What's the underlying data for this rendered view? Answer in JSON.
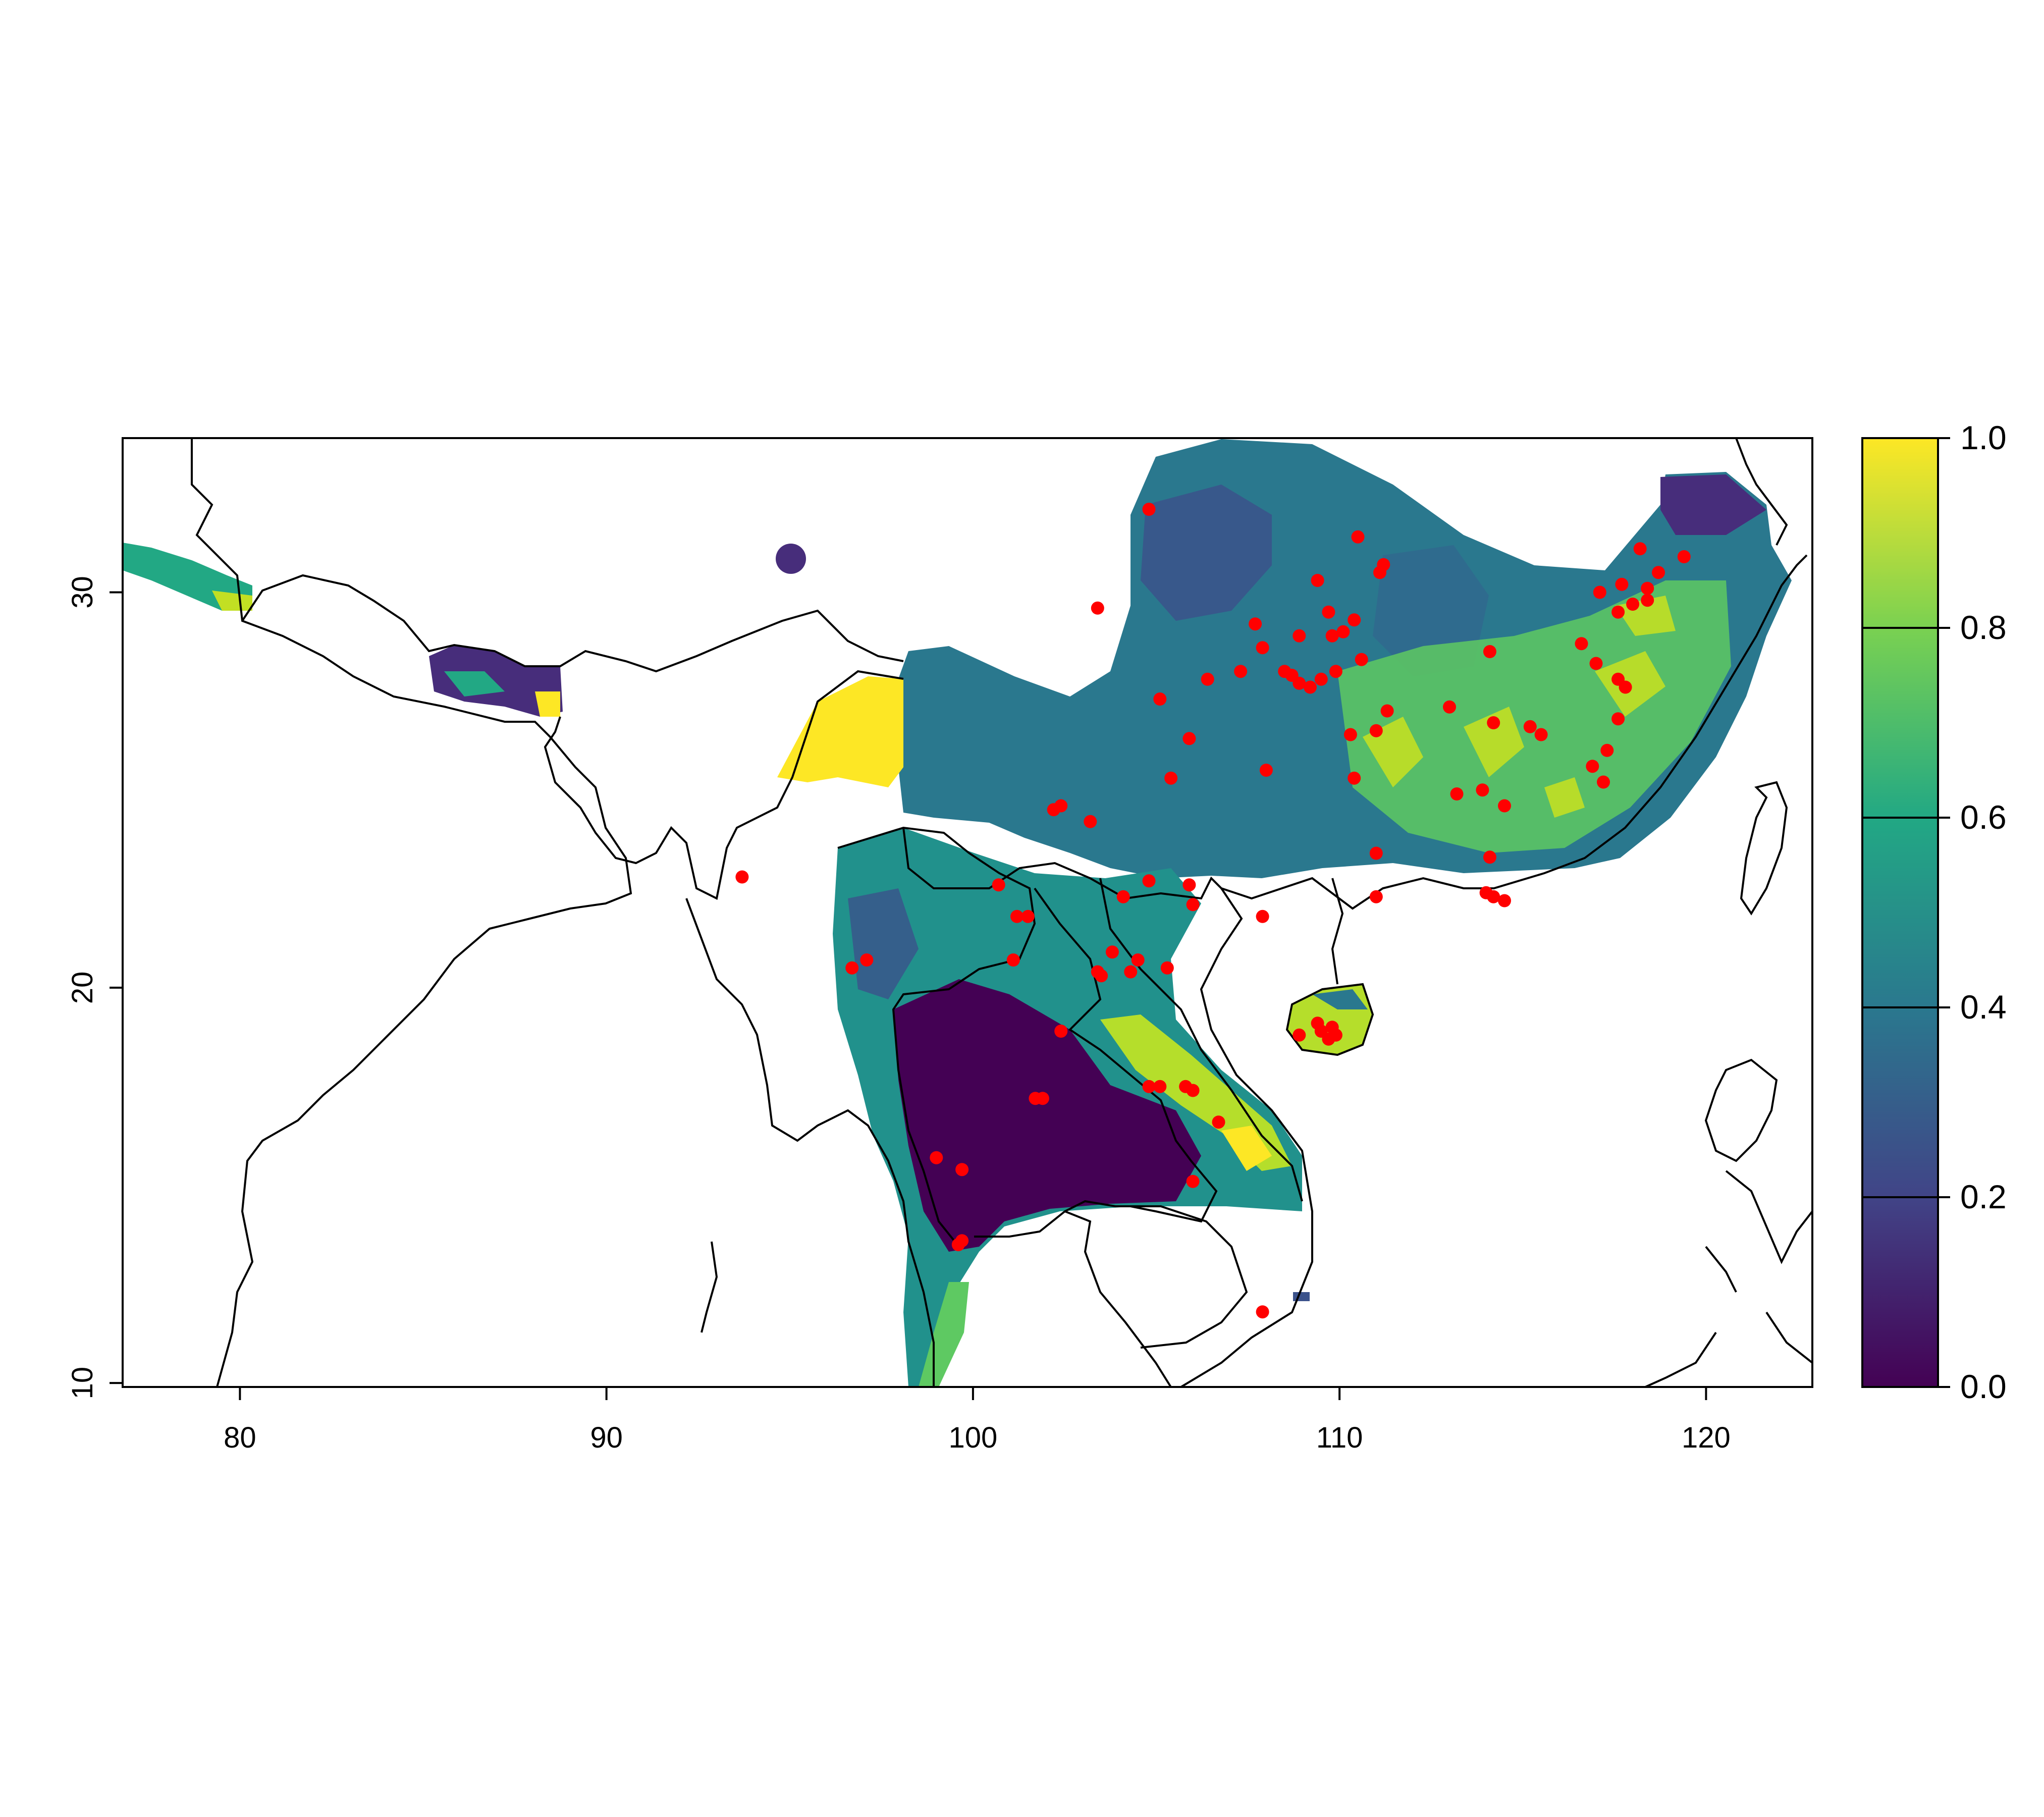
{
  "chart_data": {
    "type": "raster-map",
    "x_ticks": [
      "80",
      "90",
      "100",
      "110",
      "120"
    ],
    "y_ticks": [
      "10",
      "20",
      "30"
    ],
    "xlim": [
      76.8,
      122.9
    ],
    "ylim": [
      9.9,
      33.9
    ],
    "colorbar": {
      "ticks": [
        "0.0",
        "0.2",
        "0.4",
        "0.6",
        "0.8",
        "1.0"
      ],
      "range": [
        0,
        1
      ],
      "palette": [
        "#440154",
        "#414487",
        "#2a788e",
        "#22a884",
        "#7ad151",
        "#fde725"
      ]
    },
    "point_color": "#ff0000",
    "points": [
      {
        "lon": 104.8,
        "lat": 32.1
      },
      {
        "lon": 110.5,
        "lat": 31.4
      },
      {
        "lon": 111.2,
        "lat": 30.7
      },
      {
        "lon": 111.1,
        "lat": 30.5
      },
      {
        "lon": 109.4,
        "lat": 30.3
      },
      {
        "lon": 103.4,
        "lat": 29.6
      },
      {
        "lon": 107.7,
        "lat": 29.2
      },
      {
        "lon": 109.7,
        "lat": 29.5
      },
      {
        "lon": 110.4,
        "lat": 29.3
      },
      {
        "lon": 108.9,
        "lat": 28.9
      },
      {
        "lon": 109.8,
        "lat": 28.9
      },
      {
        "lon": 110.1,
        "lat": 29.0
      },
      {
        "lon": 107.9,
        "lat": 28.6
      },
      {
        "lon": 108.5,
        "lat": 28.0
      },
      {
        "lon": 108.7,
        "lat": 27.9
      },
      {
        "lon": 108.9,
        "lat": 27.7
      },
      {
        "lon": 109.2,
        "lat": 27.6
      },
      {
        "lon": 109.5,
        "lat": 27.8
      },
      {
        "lon": 109.9,
        "lat": 28.0
      },
      {
        "lon": 110.6,
        "lat": 28.3
      },
      {
        "lon": 107.3,
        "lat": 28.0
      },
      {
        "lon": 106.4,
        "lat": 27.8
      },
      {
        "lon": 105.1,
        "lat": 27.3
      },
      {
        "lon": 111.3,
        "lat": 27.0
      },
      {
        "lon": 113.0,
        "lat": 27.1
      },
      {
        "lon": 110.3,
        "lat": 26.4
      },
      {
        "lon": 111.0,
        "lat": 26.5
      },
      {
        "lon": 105.9,
        "lat": 26.3
      },
      {
        "lon": 108.0,
        "lat": 25.5
      },
      {
        "lon": 110.4,
        "lat": 25.3
      },
      {
        "lon": 105.4,
        "lat": 25.3
      },
      {
        "lon": 113.2,
        "lat": 24.9
      },
      {
        "lon": 113.9,
        "lat": 25.0
      },
      {
        "lon": 114.5,
        "lat": 24.6
      },
      {
        "lon": 114.1,
        "lat": 28.5
      },
      {
        "lon": 114.2,
        "lat": 26.7
      },
      {
        "lon": 115.5,
        "lat": 26.4
      },
      {
        "lon": 116.9,
        "lat": 25.6
      },
      {
        "lon": 117.3,
        "lat": 26.0
      },
      {
        "lon": 117.6,
        "lat": 26.8
      },
      {
        "lon": 117.2,
        "lat": 25.2
      },
      {
        "lon": 117.0,
        "lat": 28.2
      },
      {
        "lon": 117.6,
        "lat": 27.8
      },
      {
        "lon": 117.8,
        "lat": 27.6
      },
      {
        "lon": 117.1,
        "lat": 30.0
      },
      {
        "lon": 117.6,
        "lat": 29.5
      },
      {
        "lon": 118.0,
        "lat": 29.7
      },
      {
        "lon": 118.2,
        "lat": 31.1
      },
      {
        "lon": 118.4,
        "lat": 30.1
      },
      {
        "lon": 118.7,
        "lat": 30.5
      },
      {
        "lon": 119.4,
        "lat": 30.9
      },
      {
        "lon": 117.7,
        "lat": 30.2
      },
      {
        "lon": 118.4,
        "lat": 29.8
      },
      {
        "lon": 116.6,
        "lat": 28.7
      },
      {
        "lon": 115.2,
        "lat": 26.6
      },
      {
        "lon": 102.2,
        "lat": 24.5
      },
      {
        "lon": 103.2,
        "lat": 24.2
      },
      {
        "lon": 102.4,
        "lat": 24.6
      },
      {
        "lon": 104.1,
        "lat": 22.3
      },
      {
        "lon": 104.8,
        "lat": 22.7
      },
      {
        "lon": 105.9,
        "lat": 22.6
      },
      {
        "lon": 106.0,
        "lat": 22.1
      },
      {
        "lon": 107.9,
        "lat": 21.8
      },
      {
        "lon": 111.0,
        "lat": 23.4
      },
      {
        "lon": 111.0,
        "lat": 22.3
      },
      {
        "lon": 114.1,
        "lat": 23.3
      },
      {
        "lon": 114.0,
        "lat": 22.4
      },
      {
        "lon": 114.2,
        "lat": 22.3
      },
      {
        "lon": 114.5,
        "lat": 22.2
      },
      {
        "lon": 93.7,
        "lat": 22.8
      },
      {
        "lon": 100.7,
        "lat": 22.6
      },
      {
        "lon": 101.5,
        "lat": 21.8
      },
      {
        "lon": 101.2,
        "lat": 21.8
      },
      {
        "lon": 101.1,
        "lat": 20.7
      },
      {
        "lon": 103.8,
        "lat": 20.9
      },
      {
        "lon": 103.4,
        "lat": 20.4
      },
      {
        "lon": 103.5,
        "lat": 20.3
      },
      {
        "lon": 104.3,
        "lat": 20.4
      },
      {
        "lon": 104.5,
        "lat": 20.7
      },
      {
        "lon": 105.3,
        "lat": 20.5
      },
      {
        "lon": 97.1,
        "lat": 20.7
      },
      {
        "lon": 96.7,
        "lat": 20.5
      },
      {
        "lon": 102.4,
        "lat": 18.9
      },
      {
        "lon": 101.9,
        "lat": 17.2
      },
      {
        "lon": 101.7,
        "lat": 17.2
      },
      {
        "lon": 104.8,
        "lat": 17.5
      },
      {
        "lon": 105.1,
        "lat": 17.5
      },
      {
        "lon": 105.8,
        "lat": 17.5
      },
      {
        "lon": 106.0,
        "lat": 17.4
      },
      {
        "lon": 106.7,
        "lat": 16.6
      },
      {
        "lon": 99.0,
        "lat": 15.7
      },
      {
        "lon": 99.7,
        "lat": 15.4
      },
      {
        "lon": 106.0,
        "lat": 15.1
      },
      {
        "lon": 99.7,
        "lat": 13.6
      },
      {
        "lon": 99.6,
        "lat": 13.5
      },
      {
        "lon": 107.9,
        "lat": 11.8
      },
      {
        "lon": 108.9,
        "lat": 18.8
      },
      {
        "lon": 109.5,
        "lat": 18.9
      },
      {
        "lon": 109.7,
        "lat": 18.7
      },
      {
        "lon": 109.9,
        "lat": 18.8
      },
      {
        "lon": 109.4,
        "lat": 19.1
      },
      {
        "lon": 109.8,
        "lat": 19.0
      }
    ]
  }
}
